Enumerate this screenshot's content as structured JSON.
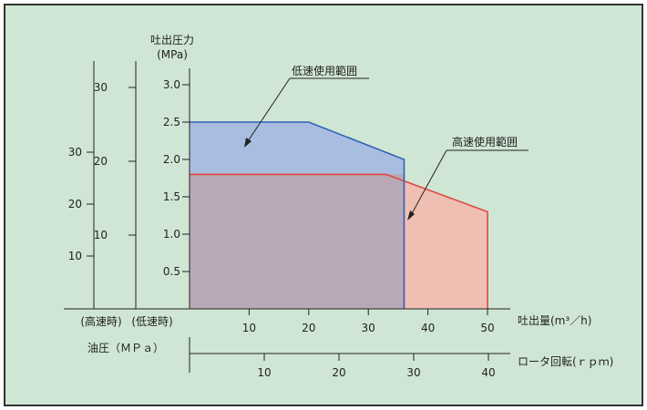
{
  "colors": {
    "background": "#cfe6d4",
    "frame": "#333333",
    "axis": "#222222",
    "low_speed_fill": "#a9bde0",
    "low_speed_line": "#2d62b8",
    "high_speed_fill": "#efbfb4",
    "high_speed_line": "#e0463a",
    "overlap_fill": "#b9a9b7"
  },
  "chart_data": {
    "type": "area",
    "title": "",
    "ylabel": "吐出圧力",
    "yunit": "(MPa)",
    "ylim": [
      0,
      3.0
    ],
    "yticks": [
      "0.5",
      "1.0",
      "1.5",
      "2.0",
      "2.5",
      "3.0"
    ],
    "xlabel": "吐出量(m³／h)",
    "xlim": [
      0,
      50
    ],
    "xticks": [
      "10",
      "20",
      "30",
      "40",
      "50"
    ],
    "secondary_x_axis": {
      "label": "ロータ回転(ｒｐｍ)",
      "ticks": [
        "10",
        "20",
        "30",
        "40"
      ]
    },
    "secondary_y_axes": [
      {
        "label": "(低速時)",
        "ticks": [
          "10",
          "20",
          "30"
        ]
      },
      {
        "label": "(高速時)",
        "ticks": [
          "10",
          "20",
          "30"
        ]
      }
    ],
    "oil_pressure_label": "油圧（ＭＰａ）",
    "series": [
      {
        "name": "低速使用範囲",
        "x": [
          0,
          0,
          20,
          36,
          36
        ],
        "y": [
          0,
          2.5,
          2.5,
          2.0,
          0
        ]
      },
      {
        "name": "高速使用範囲",
        "x": [
          0,
          0,
          33,
          50,
          50
        ],
        "y": [
          0,
          1.8,
          1.8,
          1.3,
          0
        ]
      }
    ],
    "grid": false,
    "legend": "callouts"
  }
}
